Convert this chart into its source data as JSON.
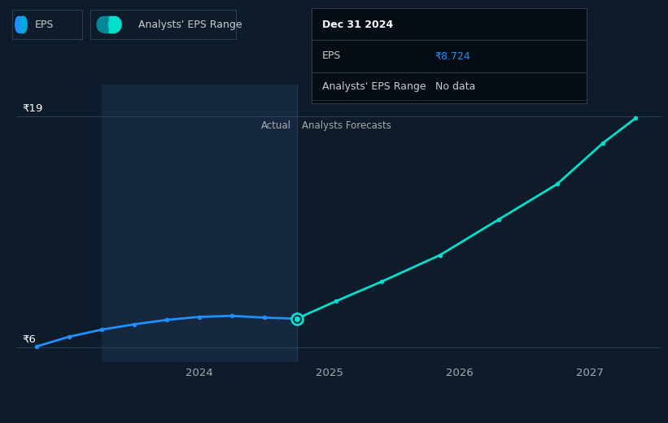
{
  "bg_color": "#0d1b2a",
  "plot_bg_color": "#0d1b2a",
  "shaded_region_color": "#152840",
  "grid_color": "#2a3f55",
  "actual_line_color": "#1e90ff",
  "forecast_line_color": "#00e0cc",
  "y_top_label": "₹19",
  "y_bottom_label": "₹6",
  "y_top_val": 19,
  "y_bottom_val": 6,
  "actual_label": "Actual",
  "forecast_label": "Analysts Forecasts",
  "label_text_color": "#aaaaaa",
  "actual_x": [
    2022.75,
    2023.0,
    2023.25,
    2023.5,
    2023.75,
    2024.0,
    2024.25,
    2024.5,
    2024.75
  ],
  "actual_y": [
    6.05,
    6.6,
    7.0,
    7.3,
    7.55,
    7.72,
    7.78,
    7.68,
    7.62
  ],
  "forecast_x": [
    2024.75,
    2025.05,
    2025.4,
    2025.85,
    2026.3,
    2026.75,
    2027.1,
    2027.35
  ],
  "forecast_y": [
    7.62,
    8.6,
    9.7,
    11.2,
    13.2,
    15.2,
    17.5,
    18.9
  ],
  "split_x": 2024.75,
  "shaded_x_start": 2023.25,
  "shaded_x_end": 2024.75,
  "xmin": 2022.6,
  "xmax": 2027.55,
  "ymin": 5.2,
  "ymax": 20.8,
  "xticks": [
    2024,
    2025,
    2026,
    2027
  ],
  "tooltip_title": "Dec 31 2024",
  "tooltip_eps_label": "EPS",
  "tooltip_eps_value": "₹8.724",
  "tooltip_range_label": "Analysts' EPS Range",
  "tooltip_range_value": "No data",
  "tooltip_eps_color": "#1e90ff",
  "tooltip_bg_color": "#050d14",
  "tooltip_border_color": "#303a47",
  "tooltip_text_color": "#cccccc",
  "legend_eps_label": "EPS",
  "legend_range_label": "Analysts' EPS Range",
  "legend_eps_color_left": "#1e90ff",
  "legend_eps_color_right": "#00aadd",
  "legend_range_color_left": "#008899",
  "legend_range_color_right": "#00e0cc",
  "legend_bg_color": "#0d1b2a",
  "legend_border_color": "#2a3f55",
  "legend_text_color": "#cccccc"
}
